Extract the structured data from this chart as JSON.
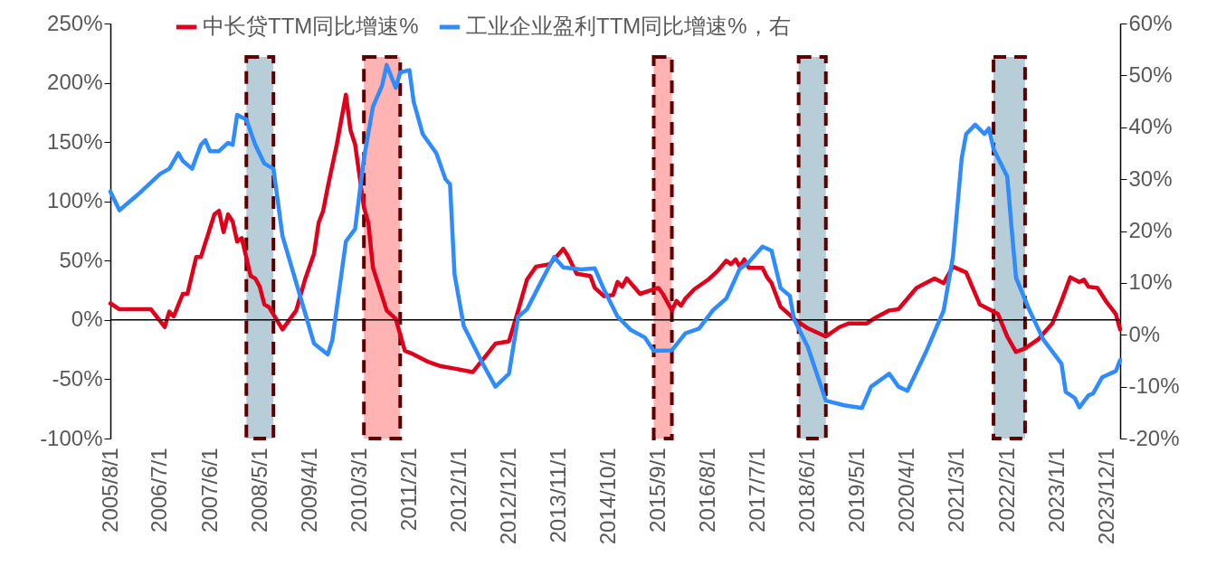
{
  "chart_data": {
    "type": "line",
    "xlim": [
      "2005-08",
      "2024-03"
    ],
    "xticks": [
      {
        "value": "2005-08",
        "label": "2005/8/1"
      },
      {
        "value": "2006-07",
        "label": "2006/7/1"
      },
      {
        "value": "2007-06",
        "label": "2007/6/1"
      },
      {
        "value": "2008-05",
        "label": "2008/5/1"
      },
      {
        "value": "2009-04",
        "label": "2009/4/1"
      },
      {
        "value": "2010-03",
        "label": "2010/3/1"
      },
      {
        "value": "2011-02",
        "label": "2011/2/1"
      },
      {
        "value": "2012-01",
        "label": "2012/1/1"
      },
      {
        "value": "2012-12",
        "label": "2012/12/1"
      },
      {
        "value": "2013-11",
        "label": "2013/11/1"
      },
      {
        "value": "2014-10",
        "label": "2014/10/1"
      },
      {
        "value": "2015-09",
        "label": "2015/9/1"
      },
      {
        "value": "2016-08",
        "label": "2016/8/1"
      },
      {
        "value": "2017-07",
        "label": "2017/7/1"
      },
      {
        "value": "2018-06",
        "label": "2018/6/1"
      },
      {
        "value": "2019-05",
        "label": "2019/5/1"
      },
      {
        "value": "2020-04",
        "label": "2020/4/1"
      },
      {
        "value": "2021-03",
        "label": "2021/3/1"
      },
      {
        "value": "2022-02",
        "label": "2022/2/1"
      },
      {
        "value": "2023-01",
        "label": "2023/1/1"
      },
      {
        "value": "2023-12",
        "label": "2023/12/1"
      }
    ],
    "ylim": [
      -100,
      250
    ],
    "yticks": [
      {
        "value": -100,
        "label": "-100%"
      },
      {
        "value": -50,
        "label": "-50%"
      },
      {
        "value": 0,
        "label": "0%"
      },
      {
        "value": 50,
        "label": "50%"
      },
      {
        "value": 100,
        "label": "100%"
      },
      {
        "value": 150,
        "label": "150%"
      },
      {
        "value": 200,
        "label": "200%"
      },
      {
        "value": 250,
        "label": "250%"
      }
    ],
    "y2lim": [
      -20,
      60
    ],
    "y2ticks": [
      {
        "value": -20,
        "label": "-20%"
      },
      {
        "value": -10,
        "label": "-10%"
      },
      {
        "value": 0,
        "label": "0%"
      },
      {
        "value": 10,
        "label": "10%"
      },
      {
        "value": 20,
        "label": "20%"
      },
      {
        "value": 30,
        "label": "30%"
      },
      {
        "value": 40,
        "label": "40%"
      },
      {
        "value": 50,
        "label": "50%"
      },
      {
        "value": 60,
        "label": "60%"
      }
    ],
    "legend": "top",
    "series": [
      {
        "name": "中长贷TTM同比增速%",
        "color": "#e0001b",
        "x": [
          "2005-08",
          "2005-10",
          "2006-05",
          "2006-08",
          "2006-09",
          "2006-10",
          "2006-12",
          "2007-01",
          "2007-03",
          "2007-04",
          "2007-07",
          "2007-08",
          "2007-09",
          "2007-10",
          "2007-11",
          "2007-12",
          "2008-01",
          "2008-03",
          "2008-04",
          "2008-05",
          "2008-06",
          "2008-07",
          "2008-10",
          "2009-01",
          "2009-03",
          "2009-05",
          "2009-06",
          "2009-07",
          "2009-08",
          "2009-10",
          "2009-12",
          "2010-01",
          "2010-02",
          "2010-04",
          "2010-05",
          "2010-06",
          "2010-09",
          "2010-11",
          "2011-01",
          "2011-03",
          "2011-06",
          "2011-09",
          "2011-12",
          "2012-04",
          "2012-07",
          "2012-09",
          "2012-12",
          "2013-02",
          "2013-04",
          "2013-06",
          "2013-09",
          "2013-12",
          "2014-01",
          "2014-03",
          "2014-06",
          "2014-07",
          "2014-09",
          "2014-11",
          "2014-12",
          "2015-01",
          "2015-02",
          "2015-05",
          "2015-09",
          "2015-10",
          "2015-12",
          "2016-01",
          "2016-02",
          "2016-03",
          "2016-05",
          "2016-08",
          "2016-10",
          "2016-12",
          "2017-01",
          "2017-02",
          "2017-03",
          "2017-04",
          "2017-05",
          "2017-08",
          "2017-09",
          "2017-10",
          "2017-12",
          "2018-03",
          "2018-06",
          "2018-10",
          "2019-01",
          "2019-03",
          "2019-07",
          "2019-09",
          "2019-12",
          "2020-02",
          "2020-06",
          "2020-10",
          "2020-12",
          "2021-02",
          "2021-05",
          "2021-08",
          "2021-12",
          "2022-02",
          "2022-04",
          "2022-06",
          "2022-09",
          "2022-12",
          "2023-02",
          "2023-04",
          "2023-06",
          "2023-07",
          "2023-08",
          "2023-10",
          "2023-12",
          "2024-02",
          "2024-03"
        ],
        "values": [
          14,
          9,
          9,
          -6,
          7,
          3,
          22,
          22,
          53,
          53,
          89,
          92,
          74,
          89,
          83,
          66,
          69,
          37,
          35,
          28,
          13,
          11,
          -8,
          8,
          34,
          56,
          82,
          92,
          112,
          148,
          190,
          160,
          148,
          95,
          82,
          44,
          8,
          1,
          -26,
          -29,
          -35,
          -39,
          -41,
          -44,
          -30,
          -20,
          -18,
          8,
          34,
          45,
          47,
          60,
          54,
          39,
          37,
          27,
          20,
          21,
          32,
          28,
          35,
          22,
          27,
          22,
          8,
          16,
          12,
          18,
          26,
          34,
          41,
          50,
          47,
          51,
          45,
          51,
          44,
          44,
          36,
          31,
          11,
          1,
          -7,
          -14,
          -6,
          -3,
          -3,
          2,
          8,
          9,
          27,
          35,
          31,
          45,
          40,
          13,
          5,
          -14,
          -27,
          -24,
          -16,
          -3,
          16,
          36,
          32,
          34,
          28,
          27,
          15,
          5,
          -8
        ]
      },
      {
        "name": "工业企业盈利TTM同比增速%，右",
        "color": "#2f8cff",
        "axis": "y2",
        "x": [
          "2005-08",
          "2005-10",
          "2006-02",
          "2006-07",
          "2006-09",
          "2006-11",
          "2006-12",
          "2007-02",
          "2007-04",
          "2007-05",
          "2007-06",
          "2007-08",
          "2007-10",
          "2007-11",
          "2007-12",
          "2008-02",
          "2008-04",
          "2008-06",
          "2008-08",
          "2008-10",
          "2009-05",
          "2009-08",
          "2009-09",
          "2009-12",
          "2010-02",
          "2010-04",
          "2010-06",
          "2010-08",
          "2010-09",
          "2010-11",
          "2010-12",
          "2011-02",
          "2011-03",
          "2011-05",
          "2011-08",
          "2011-10",
          "2011-11",
          "2011-12",
          "2012-02",
          "2012-06",
          "2012-09",
          "2012-12",
          "2013-02",
          "2013-04",
          "2013-07",
          "2013-10",
          "2013-12",
          "2014-04",
          "2014-07",
          "2014-09",
          "2014-12",
          "2015-03",
          "2015-06",
          "2015-08",
          "2015-12",
          "2016-03",
          "2016-06",
          "2016-09",
          "2016-12",
          "2017-03",
          "2017-05",
          "2017-08",
          "2017-10",
          "2017-12",
          "2018-02",
          "2018-03",
          "2018-06",
          "2018-10",
          "2019-02",
          "2019-06",
          "2019-08",
          "2019-12",
          "2020-02",
          "2020-04",
          "2020-08",
          "2020-12",
          "2021-02",
          "2021-04",
          "2021-05",
          "2021-07",
          "2021-09",
          "2021-10",
          "2021-11",
          "2022-02",
          "2022-03",
          "2022-04",
          "2022-07",
          "2022-10",
          "2023-02",
          "2023-03",
          "2023-05",
          "2023-06",
          "2023-08",
          "2023-09",
          "2023-11",
          "2024-02",
          "2024-03"
        ],
        "values": [
          27.6,
          24,
          27,
          31,
          32,
          35,
          33.5,
          32,
          36.6,
          37.5,
          35.4,
          35.4,
          37,
          36.6,
          42.4,
          41.5,
          36.6,
          33,
          32,
          19,
          -1.7,
          -3.8,
          -1,
          18,
          20.4,
          34,
          44,
          48,
          52,
          47.6,
          50.6,
          51,
          45,
          38.7,
          35,
          30,
          29,
          11.7,
          1.7,
          -5.2,
          -10,
          -7.5,
          3.5,
          4.9,
          10,
          15,
          13,
          12.6,
          12.8,
          8.7,
          3.5,
          0.9,
          -0.5,
          -3.1,
          -3,
          0.3,
          1.2,
          4.7,
          7,
          12.7,
          14,
          17,
          16.2,
          9,
          7.5,
          3,
          -2.3,
          -12.7,
          -13.6,
          -14.1,
          -10,
          -7.5,
          -10,
          -10.8,
          -3.5,
          4.7,
          15,
          34,
          38.7,
          40.5,
          38.7,
          39.8,
          35.8,
          30.5,
          21,
          11,
          4.7,
          -0.9,
          -5.6,
          -11,
          -12.2,
          -14,
          -11.7,
          -11.3,
          -8.2,
          -7,
          -4.9
        ]
      }
    ],
    "ref_lines": [
      {
        "axis": "y",
        "value": 0,
        "color": "#000000"
      }
    ],
    "bands": [
      {
        "axis": "x",
        "from": "2008-02",
        "to": "2008-08",
        "color": "#b7cdd8"
      },
      {
        "axis": "x",
        "from": "2010-04",
        "to": "2010-12",
        "color": "#ffb3b3"
      },
      {
        "axis": "x",
        "from": "2015-08",
        "to": "2015-12",
        "color": "#ffb3b3"
      },
      {
        "axis": "x",
        "from": "2018-04",
        "to": "2018-10",
        "color": "#b7cdd8"
      },
      {
        "axis": "x",
        "from": "2021-11",
        "to": "2022-06",
        "color": "#b7cdd8"
      }
    ]
  }
}
